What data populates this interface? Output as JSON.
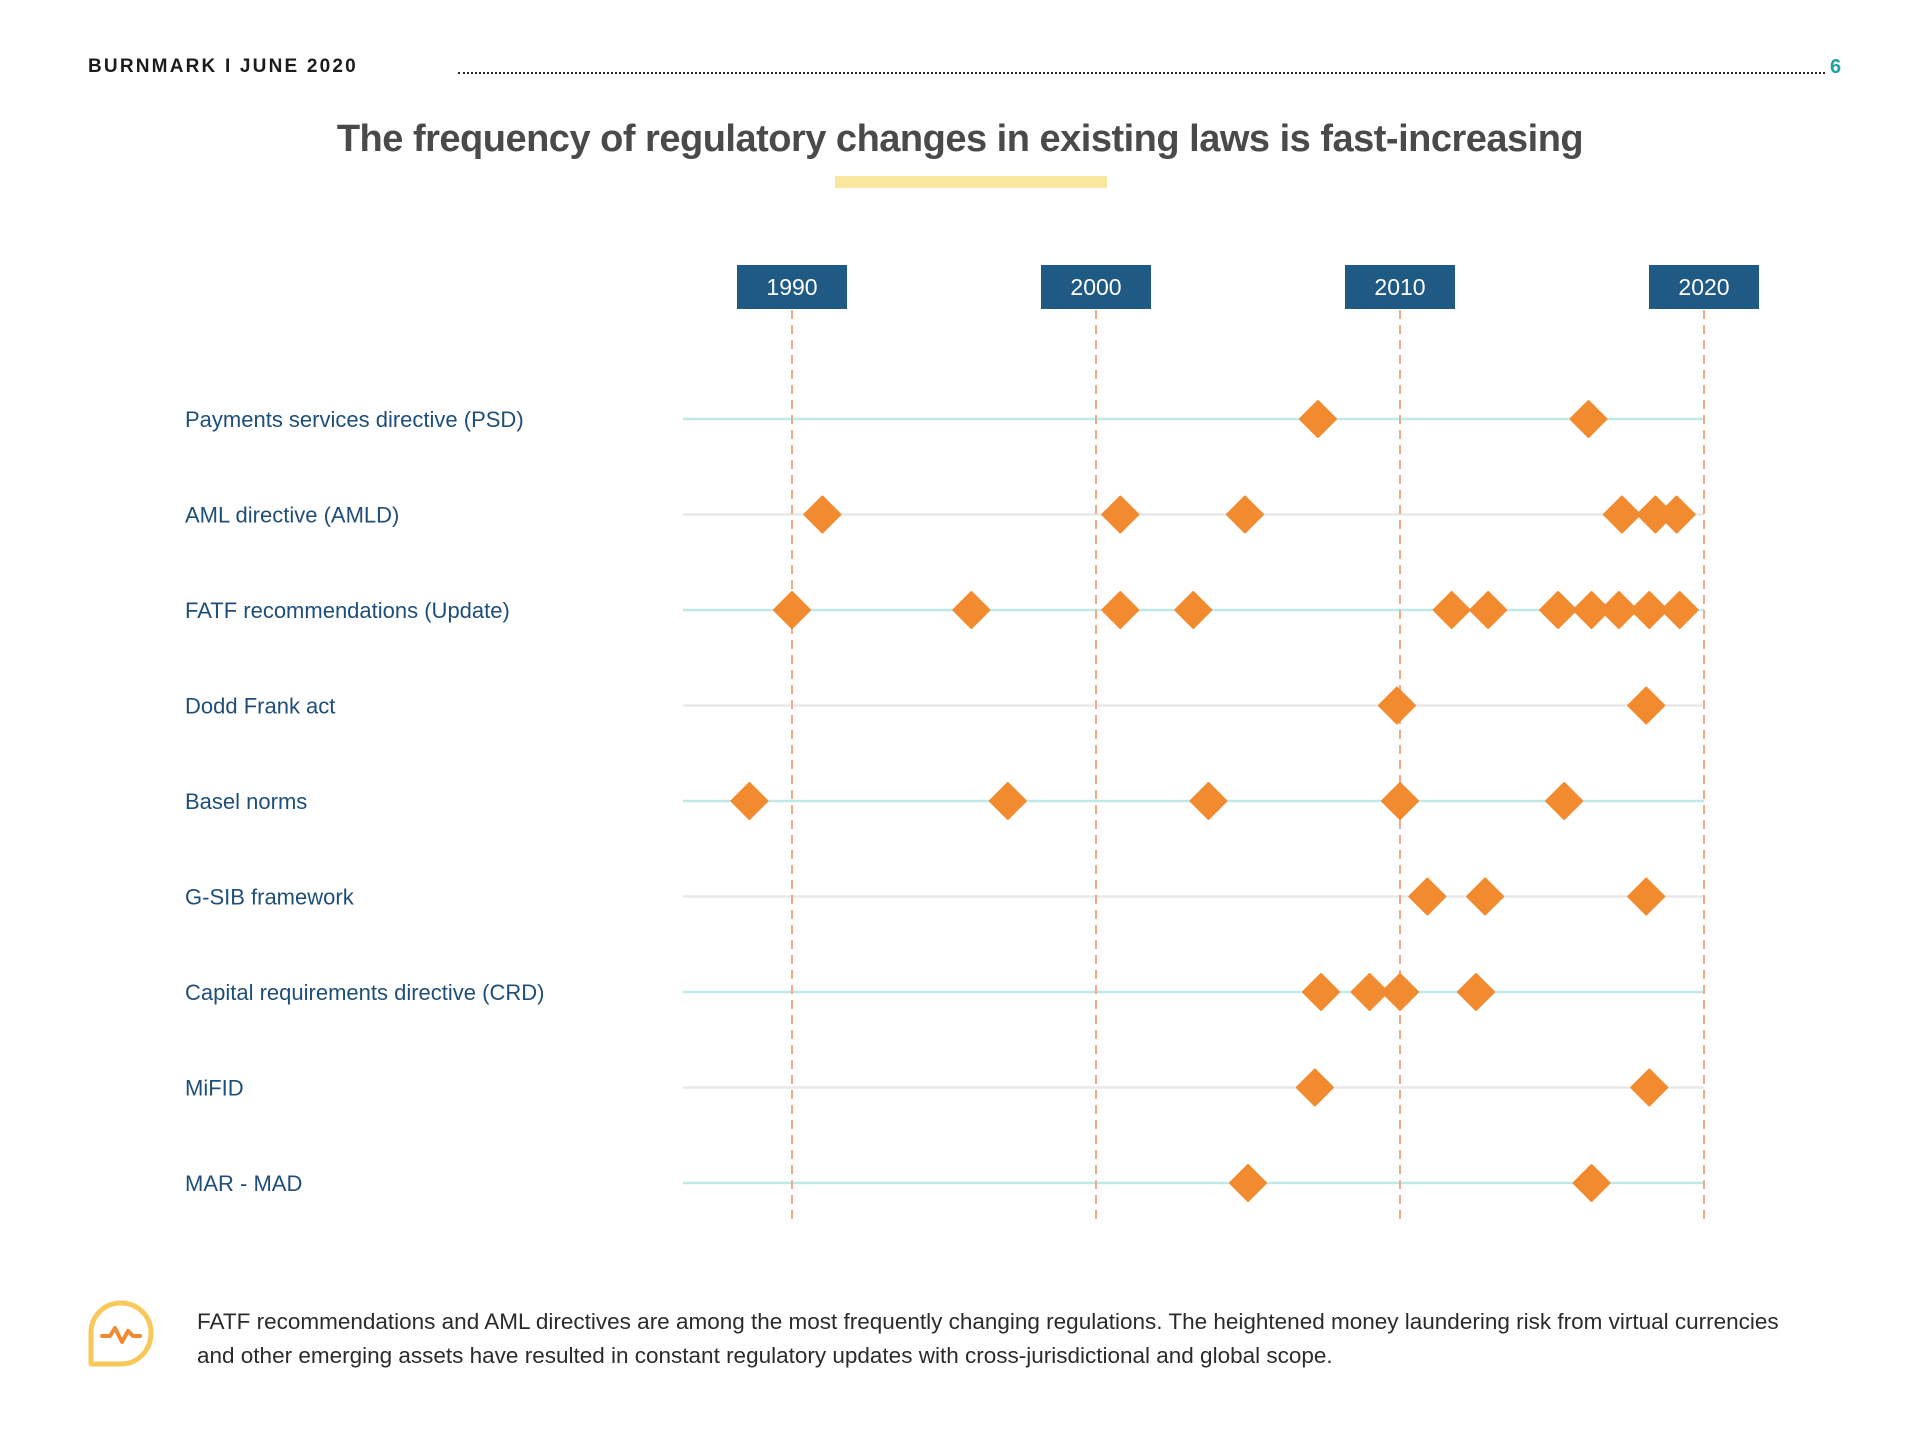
{
  "header": {
    "brand_date": "BURNMARK I JUNE 2020",
    "page_number": "6"
  },
  "title": "The frequency of regulatory changes in existing laws is fast-increasing",
  "colors": {
    "marker": "#f28b30",
    "axis_box": "#1f5a85",
    "row_line_teal": "#bfe9e8",
    "row_line_grey": "#e8e8e8",
    "year_line": "#f2a98a",
    "label_text": "#1f4e79",
    "accent_teal": "#1ba3a6",
    "underline_yellow": "#fbe6a0"
  },
  "chart_data": {
    "type": "scatter",
    "marker": "diamond",
    "x_axis": {
      "ticks": [
        1990,
        2000,
        2010,
        2020
      ],
      "range": [
        1986.2,
        2020
      ]
    },
    "rows": [
      {
        "label": "Payments services directive (PSD)",
        "line": "teal",
        "years": [
          2007.3,
          2016.2
        ]
      },
      {
        "label": "AML directive (AMLD)",
        "line": "grey",
        "years": [
          1991.0,
          2000.8,
          2004.9,
          2017.3,
          2018.4,
          2019.1
        ]
      },
      {
        "label": "FATF recommendations (Update)",
        "line": "teal",
        "years": [
          1990.0,
          1995.9,
          2000.8,
          2003.2,
          2011.7,
          2012.9,
          2015.2,
          2016.3,
          2017.2,
          2018.2,
          2019.2
        ]
      },
      {
        "label": "Dodd Frank act",
        "line": "grey",
        "years": [
          2009.9,
          2018.1
        ]
      },
      {
        "label": "Basel norms",
        "line": "teal",
        "years": [
          1988.6,
          1997.1,
          2003.7,
          2010.0,
          2015.4
        ]
      },
      {
        "label": "G-SIB framework",
        "line": "grey",
        "years": [
          2010.9,
          2012.8,
          2018.1
        ]
      },
      {
        "label": "Capital requirements directive (CRD)",
        "line": "teal",
        "years": [
          2007.4,
          2009.0,
          2010.0,
          2012.5
        ]
      },
      {
        "label": "MiFID",
        "line": "grey",
        "years": [
          2007.2,
          2018.2
        ]
      },
      {
        "label": "MAR - MAD",
        "line": "teal",
        "years": [
          2005.0,
          2016.3
        ]
      }
    ]
  },
  "footer": {
    "icon": "alert-chart-bubble-icon",
    "text": "FATF recommendations and AML directives are among the most frequently changing regulations. The heightened money laundering risk from virtual currencies and other emerging assets have resulted in constant regulatory updates with cross-jurisdictional and global scope."
  }
}
